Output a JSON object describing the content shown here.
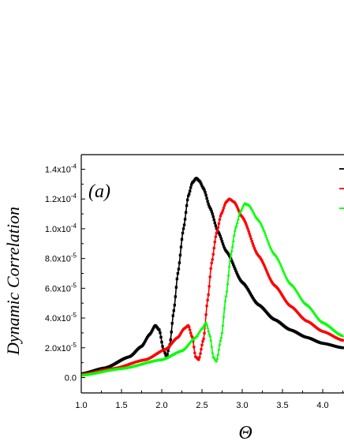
{
  "chart_data": {
    "type": "line",
    "panel_label": "(a)",
    "xlabel": "Θ",
    "ylabel": "Dynamic Correlation",
    "xlim": [
      1.0,
      4.25
    ],
    "ylim": [
      -5e-06,
      0.000149
    ],
    "x_ticks": [
      {
        "value": 1.0,
        "label": "1.0"
      },
      {
        "value": 1.5,
        "label": "1.5"
      },
      {
        "value": 2.0,
        "label": "2.0"
      },
      {
        "value": 2.5,
        "label": "2.5"
      },
      {
        "value": 3.0,
        "label": "3.0"
      },
      {
        "value": 3.5,
        "label": "3.5"
      },
      {
        "value": 4.0,
        "label": "4.0"
      }
    ],
    "y_ticks": [
      {
        "value": 0,
        "mantissa": "0.0",
        "exponent": ""
      },
      {
        "value": 2e-05,
        "mantissa": "2.0x10",
        "exponent": "-5"
      },
      {
        "value": 4e-05,
        "mantissa": "4.0x10",
        "exponent": "-5"
      },
      {
        "value": 6e-05,
        "mantissa": "6.0x10",
        "exponent": "-5"
      },
      {
        "value": 8e-05,
        "mantissa": "8.0x10",
        "exponent": "-5"
      },
      {
        "value": 0.0001,
        "mantissa": "1.0x10",
        "exponent": "-4"
      },
      {
        "value": 0.00012,
        "mantissa": "1.2x10",
        "exponent": "-4"
      },
      {
        "value": 0.00014,
        "mantissa": "1.4x10",
        "exponent": "-4"
      }
    ],
    "legend": "top-right (cut off)",
    "series": [
      {
        "color": "#000000",
        "marker": "square",
        "x": [
          1.0,
          1.3,
          1.6,
          1.75,
          1.85,
          1.92,
          1.97,
          2.02,
          2.06,
          2.1,
          2.15,
          2.2,
          2.27,
          2.33,
          2.38,
          2.43,
          2.47,
          2.52,
          2.6,
          2.7,
          2.8,
          3.0,
          3.2,
          3.4,
          3.6,
          3.8,
          4.0,
          4.25
        ],
        "y": [
          2.5e-06,
          6.5e-06,
          1.4e-05,
          2.1e-05,
          2.9e-05,
          3.5e-05,
          3.2e-05,
          1.9e-05,
          1.4e-05,
          2.2e-05,
          4.5e-05,
          7e-05,
          0.0001,
          0.000122,
          0.000131,
          0.000134,
          0.000132,
          0.000127,
          0.000114,
          9.8e-05,
          8.5e-05,
          6.4e-05,
          4.9e-05,
          3.9e-05,
          3.2e-05,
          2.7e-05,
          2.3e-05,
          2e-05
        ]
      },
      {
        "color": "#ff0000",
        "marker": "circle",
        "x": [
          1.0,
          1.4,
          1.8,
          2.05,
          2.2,
          2.28,
          2.33,
          2.38,
          2.42,
          2.46,
          2.52,
          2.57,
          2.62,
          2.68,
          2.74,
          2.8,
          2.84,
          2.9,
          3.0,
          3.2,
          3.4,
          3.6,
          3.8,
          4.0,
          4.25
        ],
        "y": [
          2e-06,
          6e-06,
          1.2e-05,
          1.9e-05,
          2.7e-05,
          3.3e-05,
          3.5e-05,
          2.7e-05,
          1.4e-05,
          1.2e-05,
          2.6e-05,
          5.2e-05,
          7.7e-05,
          9.7e-05,
          0.00011,
          0.000118,
          0.00012,
          0.000118,
          0.000108,
          8.2e-05,
          6.2e-05,
          4.8e-05,
          3.8e-05,
          3.1e-05,
          2.5e-05
        ]
      },
      {
        "color": "#00ff00",
        "marker": "triangle",
        "x": [
          1.0,
          1.5,
          2.0,
          2.25,
          2.42,
          2.5,
          2.55,
          2.6,
          2.64,
          2.68,
          2.74,
          2.8,
          2.86,
          2.92,
          2.98,
          3.03,
          3.08,
          3.2,
          3.4,
          3.6,
          3.8,
          4.0,
          4.25
        ],
        "y": [
          1.5e-06,
          6e-06,
          1.2e-05,
          1.8e-05,
          2.7e-05,
          3.3e-05,
          3.7e-05,
          2.8e-05,
          1.4e-05,
          1.1e-05,
          2.7e-05,
          5.5e-05,
          8.3e-05,
          0.000101,
          0.000112,
          0.000117,
          0.000116,
          0.000106,
          8.3e-05,
          6.3e-05,
          4.9e-05,
          3.7e-05,
          2.8e-05
        ]
      }
    ]
  }
}
